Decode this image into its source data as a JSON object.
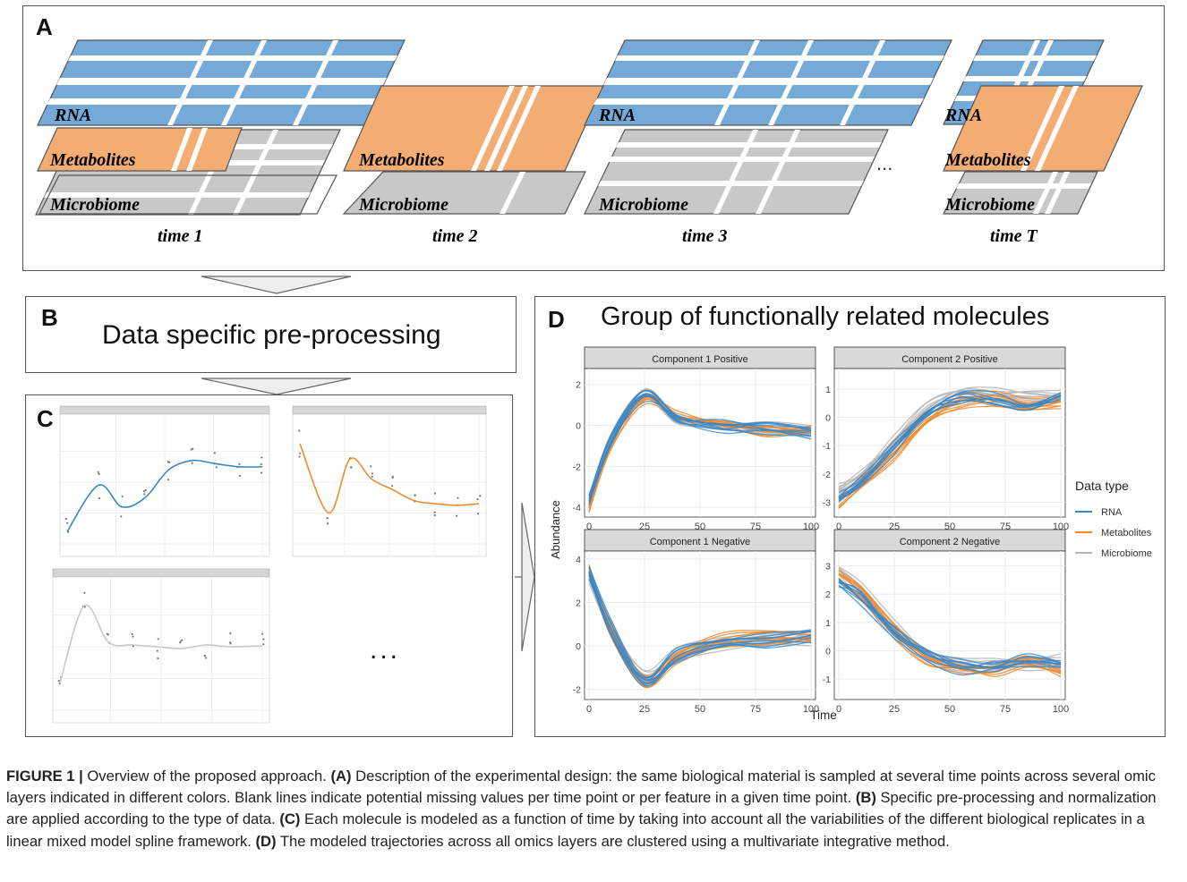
{
  "panel_a": {
    "label": "A",
    "layers": {
      "rna": "RNA",
      "metabolites": "Metabolites",
      "microbiome": "Microbiome"
    },
    "time_labels": [
      "time 1",
      "time 2",
      "time 3",
      "time T"
    ],
    "ellipsis": "..."
  },
  "panel_b": {
    "label": "B",
    "title": "Data specific pre-processing"
  },
  "panel_c": {
    "label": "C",
    "ellipsis": "..."
  },
  "panel_d": {
    "label": "D",
    "title": "Group of functionally related molecules",
    "ylabel": "Abundance",
    "xlabel": "Time",
    "legend_title": "Data type",
    "legend": [
      {
        "name": "RNA",
        "color": "#3a87c8"
      },
      {
        "name": "Metabolites",
        "color": "#ef8a2f"
      },
      {
        "name": "Microbiome",
        "color": "#b5b5b5"
      }
    ],
    "facets": [
      "Component 1 Positive",
      "Component 2 Positive",
      "Component 1 Negative",
      "Component 2 Negative"
    ]
  },
  "caption": {
    "figure_label": "FIGURE 1 |",
    "intro": " Overview of the proposed approach. ",
    "a_tag": "(A)",
    "a_text": " Description of the experimental design: the same biological material is sampled at several time points across several omic layers indicated in different colors. Blank lines indicate potential missing values per time point or per feature in a given time point. ",
    "b_tag": "(B)",
    "b_text": " Specific pre-processing and normalization are applied according to the type of data. ",
    "c_tag": "(C)",
    "c_text": " Each molecule is modeled as a function of time by taking into account all the variabilities of the different biological replicates in a linear mixed model spline framework. ",
    "d_tag": "(D)",
    "d_text": " The modeled trajectories across all omics layers are clustered using a multivariate integrative method."
  },
  "chart_data": [
    {
      "type": "line",
      "title": "Component 1 Positive",
      "xlim": [
        0,
        100
      ],
      "ylim": [
        -4.3,
        2.6
      ],
      "x_ticks": [
        0,
        25,
        50,
        75,
        100
      ],
      "y_ticks": [
        -4,
        -2,
        0,
        2
      ],
      "series": [
        {
          "name": "RNA",
          "x": [
            0,
            10,
            25,
            40,
            60,
            80,
            100
          ],
          "y": [
            -3.6,
            -0.6,
            1.5,
            0.4,
            0,
            -0.1,
            -0.3
          ]
        },
        {
          "name": "Metabolites",
          "x": [
            0,
            10,
            25,
            40,
            60,
            80,
            100
          ],
          "y": [
            -3.9,
            -0.8,
            1.4,
            0.5,
            0.1,
            -0.2,
            -0.2
          ]
        },
        {
          "name": "Microbiome",
          "x": [
            0,
            10,
            25,
            40,
            60,
            80,
            100
          ],
          "y": [
            -3.7,
            -0.7,
            1.6,
            0.3,
            0.1,
            -0.1,
            -0.3
          ]
        }
      ]
    },
    {
      "type": "line",
      "title": "Component 2 Positive",
      "xlim": [
        0,
        100
      ],
      "ylim": [
        -3.4,
        1.6
      ],
      "x_ticks": [
        0,
        25,
        50,
        75,
        100
      ],
      "y_ticks": [
        -3,
        -2,
        -1,
        0,
        1
      ],
      "series": [
        {
          "name": "RNA",
          "x": [
            0,
            10,
            25,
            40,
            55,
            70,
            85,
            100
          ],
          "y": [
            -2.8,
            -2.2,
            -1,
            0.2,
            0.8,
            0.7,
            0.5,
            0.8
          ]
        },
        {
          "name": "Metabolites",
          "x": [
            0,
            10,
            25,
            40,
            55,
            70,
            85,
            100
          ],
          "y": [
            -3,
            -2.3,
            -1.2,
            0,
            0.6,
            0.7,
            0.5,
            0.6
          ]
        },
        {
          "name": "Microbiome",
          "x": [
            0,
            10,
            25,
            40,
            55,
            70,
            85,
            100
          ],
          "y": [
            -2.6,
            -2.1,
            -0.9,
            0.3,
            0.8,
            0.8,
            0.7,
            0.7
          ]
        }
      ]
    },
    {
      "type": "line",
      "title": "Component 1 Negative",
      "xlim": [
        0,
        100
      ],
      "ylim": [
        -2.3,
        4.2
      ],
      "x_ticks": [
        0,
        25,
        50,
        75,
        100
      ],
      "y_ticks": [
        -2,
        0,
        2,
        4
      ],
      "series": [
        {
          "name": "RNA",
          "x": [
            0,
            10,
            25,
            40,
            60,
            80,
            100
          ],
          "y": [
            3.4,
            0.8,
            -1.5,
            -0.4,
            0.2,
            0.3,
            0.5
          ]
        },
        {
          "name": "Metabolites",
          "x": [
            0,
            10,
            25,
            40,
            60,
            80,
            100
          ],
          "y": [
            3.5,
            0.7,
            -1.6,
            -0.5,
            0.3,
            0.4,
            0.5
          ]
        },
        {
          "name": "Microbiome",
          "x": [
            0,
            10,
            25,
            40,
            60,
            80,
            100
          ],
          "y": [
            3.2,
            0.8,
            -1.4,
            -0.3,
            0.1,
            0.3,
            0.4
          ]
        }
      ]
    },
    {
      "type": "line",
      "title": "Component 2 Negative",
      "xlim": [
        0,
        100
      ],
      "ylim": [
        -1.6,
        3.4
      ],
      "x_ticks": [
        0,
        25,
        50,
        75,
        100
      ],
      "y_ticks": [
        -1,
        0,
        1,
        2,
        3
      ],
      "series": [
        {
          "name": "RNA",
          "x": [
            0,
            10,
            25,
            40,
            55,
            70,
            85,
            100
          ],
          "y": [
            2.3,
            1.8,
            0.6,
            -0.2,
            -0.6,
            -0.6,
            -0.4,
            -0.6
          ]
        },
        {
          "name": "Metabolites",
          "x": [
            0,
            10,
            25,
            40,
            55,
            70,
            85,
            100
          ],
          "y": [
            2.6,
            2,
            0.7,
            -0.3,
            -0.6,
            -0.7,
            -0.5,
            -0.7
          ]
        },
        {
          "name": "Microbiome",
          "x": [
            0,
            10,
            25,
            40,
            55,
            70,
            85,
            100
          ],
          "y": [
            2.8,
            2.1,
            0.8,
            -0.1,
            -0.5,
            -0.5,
            -0.4,
            -0.4
          ]
        }
      ]
    },
    {
      "type": "line",
      "title": "",
      "xlim": [
        0,
        25
      ],
      "ylim": [
        4,
        8
      ],
      "series": [
        {
          "name": "",
          "x": [
            0,
            4,
            7,
            10,
            13,
            16,
            19,
            22,
            25
          ],
          "y": [
            4.4,
            5.9,
            5.2,
            5.5,
            6.4,
            6.7,
            6.6,
            6.5,
            6.5
          ]
        }
      ]
    },
    {
      "type": "line",
      "title": "",
      "xlim": [
        0,
        25
      ],
      "ylim": [
        0,
        8
      ],
      "series": [
        {
          "name": "",
          "x": [
            0,
            4,
            7,
            10,
            13,
            16,
            19,
            22,
            25
          ],
          "y": [
            6.5,
            2,
            5.5,
            4.2,
            3.5,
            2.8,
            2.6,
            2.5,
            2.6
          ]
        }
      ]
    },
    {
      "type": "line",
      "title": "",
      "xlim": [
        0,
        25
      ],
      "ylim": [
        0,
        14
      ],
      "series": [
        {
          "name": "",
          "x": [
            0,
            3,
            6,
            9,
            12,
            15,
            18,
            21,
            25
          ],
          "y": [
            3,
            11.5,
            7.5,
            7.2,
            7.0,
            6.8,
            7.2,
            7.0,
            7.1
          ]
        }
      ]
    }
  ]
}
